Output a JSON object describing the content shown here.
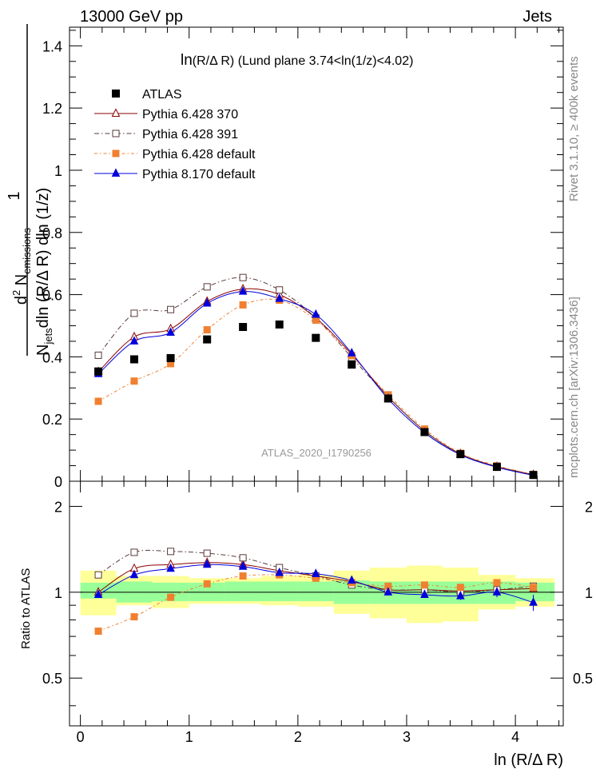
{
  "header": {
    "left": "13000 GeV pp",
    "right": "Jets"
  },
  "side_labels": {
    "rivet": "Rivet 3.1.10, ≥ 400k events",
    "mcplots": "mcplots.cern.ch [arXiv:1306.3436]"
  },
  "chart_data": {
    "type": "scatter",
    "title_main": "ln",
    "title_rest": "(R/Δ R) (Lund plane 3.74<ln(1/z)<4.02)",
    "watermark": "ATLAS_2020_I1790256",
    "ylabel_parts": {
      "one": "1",
      "numer_d2": "d",
      "numer_sup": "2",
      "numer_N": " N",
      "numer_sub": "emissions",
      "denom_N": "N",
      "denom_sub": "jets",
      "denom_rest": "dln (R/Δ R) dln (1/z)"
    },
    "xlabel": "ln (R/Δ R)",
    "ratio_ylabel": "Ratio to ATLAS",
    "xlim": [
      -0.1,
      4.44
    ],
    "ylim": [
      0,
      1.46
    ],
    "ratio_ylim": [
      0.34,
      2.45
    ],
    "x_ticks": [
      "0",
      "1",
      "2",
      "3",
      "4"
    ],
    "y_ticks": [
      "0",
      "0.2",
      "0.4",
      "0.6",
      "0.8",
      "1",
      "1.2",
      "1.4"
    ],
    "ratio_y_ticks": [
      "0.5",
      "1",
      "2"
    ],
    "bins": [
      0,
      0.33,
      0.66,
      1.0,
      1.33,
      1.66,
      2.0,
      2.33,
      2.66,
      3.0,
      3.33,
      3.66,
      4.0,
      4.36
    ],
    "x": [
      0.165,
      0.495,
      0.83,
      1.165,
      1.495,
      1.83,
      2.165,
      2.495,
      2.83,
      3.165,
      3.495,
      3.83,
      4.165
    ],
    "data": {
      "name": "ATLAS",
      "values": [
        0.353,
        0.392,
        0.396,
        0.456,
        0.496,
        0.504,
        0.461,
        0.375,
        0.266,
        0.158,
        0.087,
        0.046,
        0.02
      ]
    },
    "series": [
      {
        "name": "Pythia 6.428 370",
        "color": "#8b0000",
        "marker": "triangle-open",
        "dash": "",
        "values": [
          0.352,
          0.464,
          0.49,
          0.578,
          0.618,
          0.6,
          0.525,
          0.408,
          0.272,
          0.162,
          0.088,
          0.047,
          0.021
        ],
        "ratio": [
          1.0,
          1.21,
          1.25,
          1.27,
          1.25,
          1.19,
          1.14,
          1.09,
          1.02,
          1.02,
          1.01,
          1.02,
          1.03
        ]
      },
      {
        "name": "Pythia 6.428 391",
        "color": "#5a3a3a",
        "marker": "square-open",
        "dash": "6,3,1.5,3",
        "values": [
          0.405,
          0.54,
          0.552,
          0.625,
          0.655,
          0.615,
          0.525,
          0.398,
          0.272,
          0.162,
          0.087,
          0.047,
          0.022
        ],
        "ratio": [
          1.15,
          1.38,
          1.39,
          1.37,
          1.32,
          1.22,
          1.14,
          1.06,
          1.02,
          1.02,
          1.0,
          1.02,
          1.05
        ]
      },
      {
        "name": "Pythia 6.428 default",
        "color": "#f08030",
        "marker": "square-filled",
        "dash": "4,3,1.5,3",
        "values": [
          0.257,
          0.322,
          0.378,
          0.487,
          0.567,
          0.582,
          0.518,
          0.404,
          0.278,
          0.168,
          0.09,
          0.05,
          0.022
        ],
        "ratio": [
          0.73,
          0.82,
          0.96,
          1.07,
          1.14,
          1.15,
          1.12,
          1.08,
          1.05,
          1.06,
          1.04,
          1.08,
          1.04
        ]
      },
      {
        "name": "Pythia 8.170 default",
        "color": "#0000dd",
        "marker": "triangle-filled",
        "dash": "",
        "values": [
          0.345,
          0.45,
          0.478,
          0.572,
          0.61,
          0.587,
          0.536,
          0.412,
          0.265,
          0.156,
          0.085,
          0.045,
          0.019
        ],
        "ratio": [
          0.98,
          1.15,
          1.21,
          1.25,
          1.23,
          1.17,
          1.16,
          1.1,
          1.0,
          0.98,
          0.97,
          1.0,
          0.92
        ],
        "ratio_err": [
          0,
          0,
          0,
          0,
          0,
          0,
          0,
          0,
          0,
          0,
          0.03,
          0.04,
          0.06
        ]
      }
    ],
    "band_inner": [
      [
        0.95,
        1.08
      ],
      [
        0.92,
        1.09
      ],
      [
        0.93,
        1.08
      ],
      [
        0.93,
        1.08
      ],
      [
        0.93,
        1.09
      ],
      [
        0.93,
        1.09
      ],
      [
        0.93,
        1.09
      ],
      [
        0.91,
        1.1
      ],
      [
        0.91,
        1.09
      ],
      [
        0.91,
        1.09
      ],
      [
        0.91,
        1.09
      ],
      [
        0.91,
        1.09
      ],
      [
        0.93,
        1.08
      ]
    ],
    "band_outer": [
      [
        0.83,
        1.19
      ],
      [
        0.9,
        1.14
      ],
      [
        0.88,
        1.14
      ],
      [
        0.91,
        1.12
      ],
      [
        0.91,
        1.12
      ],
      [
        0.9,
        1.14
      ],
      [
        0.89,
        1.15
      ],
      [
        0.84,
        1.19
      ],
      [
        0.81,
        1.22
      ],
      [
        0.78,
        1.24
      ],
      [
        0.79,
        1.22
      ],
      [
        0.87,
        1.15
      ],
      [
        0.89,
        1.12
      ]
    ],
    "legend_position": "top-left",
    "ratio_reference_line": 1
  }
}
